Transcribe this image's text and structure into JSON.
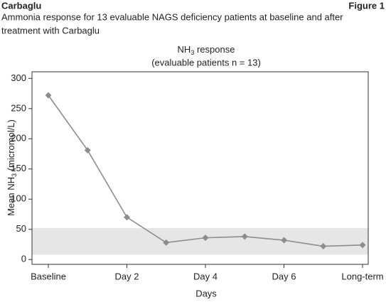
{
  "header": {
    "left": "Carbaglu",
    "right": "Figure 1",
    "caption": [
      "Ammonia response for 13 evaluable NAGS deficiency patients at baseline and after",
      "treatment with Carbaglu"
    ]
  },
  "chart_data": {
    "type": "line",
    "title": {
      "text": "NH",
      "subscript": "3",
      "rest": " response"
    },
    "subtitle": "(evaluable patients n = 13)",
    "ylabel": {
      "text": "Mean NH",
      "subscript": "3",
      "rest": " (micromol/L)"
    },
    "xlabel": "Days",
    "categories": [
      "Baseline",
      null,
      "Day 2",
      null,
      "Day 4",
      null,
      "Day 6",
      null,
      "Long-term"
    ],
    "values": [
      272,
      181,
      70,
      28,
      36,
      38,
      32,
      22,
      24
    ],
    "color": "#8c8c8c",
    "shaded_range": [
      8,
      52
    ],
    "shaded_color": "#e6e6e6",
    "ylim": [
      -8,
      311
    ],
    "yticks": [
      0,
      50,
      100,
      150,
      200,
      250,
      300
    ]
  }
}
